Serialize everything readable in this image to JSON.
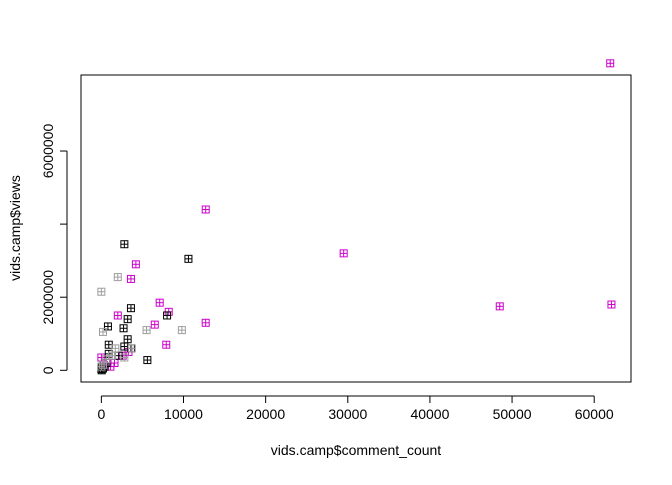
{
  "chart_data": {
    "type": "scatter",
    "title": "",
    "xlabel": "vids.camp$comment_count",
    "ylabel": "vids.camp$views",
    "xlim": [
      -2480,
      64480
    ],
    "ylim": [
      -320000,
      8080000
    ],
    "x_ticks": [
      0,
      10000,
      20000,
      30000,
      40000,
      50000,
      60000
    ],
    "x_tick_labels": [
      "0",
      "10000",
      "20000",
      "30000",
      "40000",
      "50000",
      "60000"
    ],
    "y_ticks": [
      0,
      2000000,
      4000000,
      6000000
    ],
    "y_tick_labels": [
      "0",
      "2000000",
      "",
      "6000000"
    ],
    "marker": "boxed-plus",
    "colors": {
      "black": "#000000",
      "gray": "#9e9e9e",
      "magenta": "#cd00cd"
    },
    "points": [
      {
        "x": 61950,
        "y": 8400000,
        "color": "magenta"
      },
      {
        "x": 62100,
        "y": 1800000,
        "color": "magenta"
      },
      {
        "x": 48500,
        "y": 1750000,
        "color": "magenta"
      },
      {
        "x": 29500,
        "y": 3200000,
        "color": "magenta"
      },
      {
        "x": 12700,
        "y": 4400000,
        "color": "magenta"
      },
      {
        "x": 12700,
        "y": 1300000,
        "color": "magenta"
      },
      {
        "x": 8200,
        "y": 1600000,
        "color": "magenta"
      },
      {
        "x": 7900,
        "y": 700000,
        "color": "magenta"
      },
      {
        "x": 7100,
        "y": 1850000,
        "color": "magenta"
      },
      {
        "x": 6500,
        "y": 1250000,
        "color": "magenta"
      },
      {
        "x": 4200,
        "y": 2900000,
        "color": "magenta"
      },
      {
        "x": 3600,
        "y": 2500000,
        "color": "magenta"
      },
      {
        "x": 2000,
        "y": 1500000,
        "color": "magenta"
      },
      {
        "x": 3300,
        "y": 500000,
        "color": "magenta"
      },
      {
        "x": 2600,
        "y": 400000,
        "color": "magenta"
      },
      {
        "x": 1600,
        "y": 200000,
        "color": "magenta"
      },
      {
        "x": 1100,
        "y": 100000,
        "color": "magenta"
      },
      {
        "x": 600,
        "y": 300000,
        "color": "magenta"
      },
      {
        "x": 300,
        "y": 150000,
        "color": "magenta"
      },
      {
        "x": 0,
        "y": 350000,
        "color": "magenta"
      },
      {
        "x": 10600,
        "y": 3050000,
        "color": "black"
      },
      {
        "x": 2800,
        "y": 3450000,
        "color": "black"
      },
      {
        "x": 8000,
        "y": 1500000,
        "color": "black"
      },
      {
        "x": 3600,
        "y": 1700000,
        "color": "black"
      },
      {
        "x": 3200,
        "y": 1400000,
        "color": "black"
      },
      {
        "x": 2700,
        "y": 1150000,
        "color": "black"
      },
      {
        "x": 800,
        "y": 1200000,
        "color": "black"
      },
      {
        "x": 3200,
        "y": 850000,
        "color": "black"
      },
      {
        "x": 3600,
        "y": 600000,
        "color": "black"
      },
      {
        "x": 2800,
        "y": 650000,
        "color": "black"
      },
      {
        "x": 900,
        "y": 700000,
        "color": "black"
      },
      {
        "x": 900,
        "y": 450000,
        "color": "black"
      },
      {
        "x": 2100,
        "y": 400000,
        "color": "black"
      },
      {
        "x": 5600,
        "y": 280000,
        "color": "black"
      },
      {
        "x": 600,
        "y": 200000,
        "color": "black"
      },
      {
        "x": 400,
        "y": 100000,
        "color": "black"
      },
      {
        "x": 200,
        "y": 50000,
        "color": "black"
      },
      {
        "x": 100,
        "y": 100000,
        "color": "black"
      },
      {
        "x": 0,
        "y": 30000,
        "color": "black"
      },
      {
        "x": 50,
        "y": 0,
        "color": "black"
      },
      {
        "x": 0,
        "y": 2150000,
        "color": "gray"
      },
      {
        "x": 2000,
        "y": 2550000,
        "color": "gray"
      },
      {
        "x": 9800,
        "y": 1100000,
        "color": "gray"
      },
      {
        "x": 5500,
        "y": 1100000,
        "color": "gray"
      },
      {
        "x": 200,
        "y": 1050000,
        "color": "gray"
      },
      {
        "x": 1700,
        "y": 600000,
        "color": "gray"
      },
      {
        "x": 3700,
        "y": 600000,
        "color": "gray"
      },
      {
        "x": 1300,
        "y": 400000,
        "color": "gray"
      },
      {
        "x": 2800,
        "y": 350000,
        "color": "gray"
      },
      {
        "x": 600,
        "y": 300000,
        "color": "gray"
      },
      {
        "x": 200,
        "y": 150000,
        "color": "gray"
      },
      {
        "x": 0,
        "y": 100000,
        "color": "gray"
      }
    ]
  }
}
